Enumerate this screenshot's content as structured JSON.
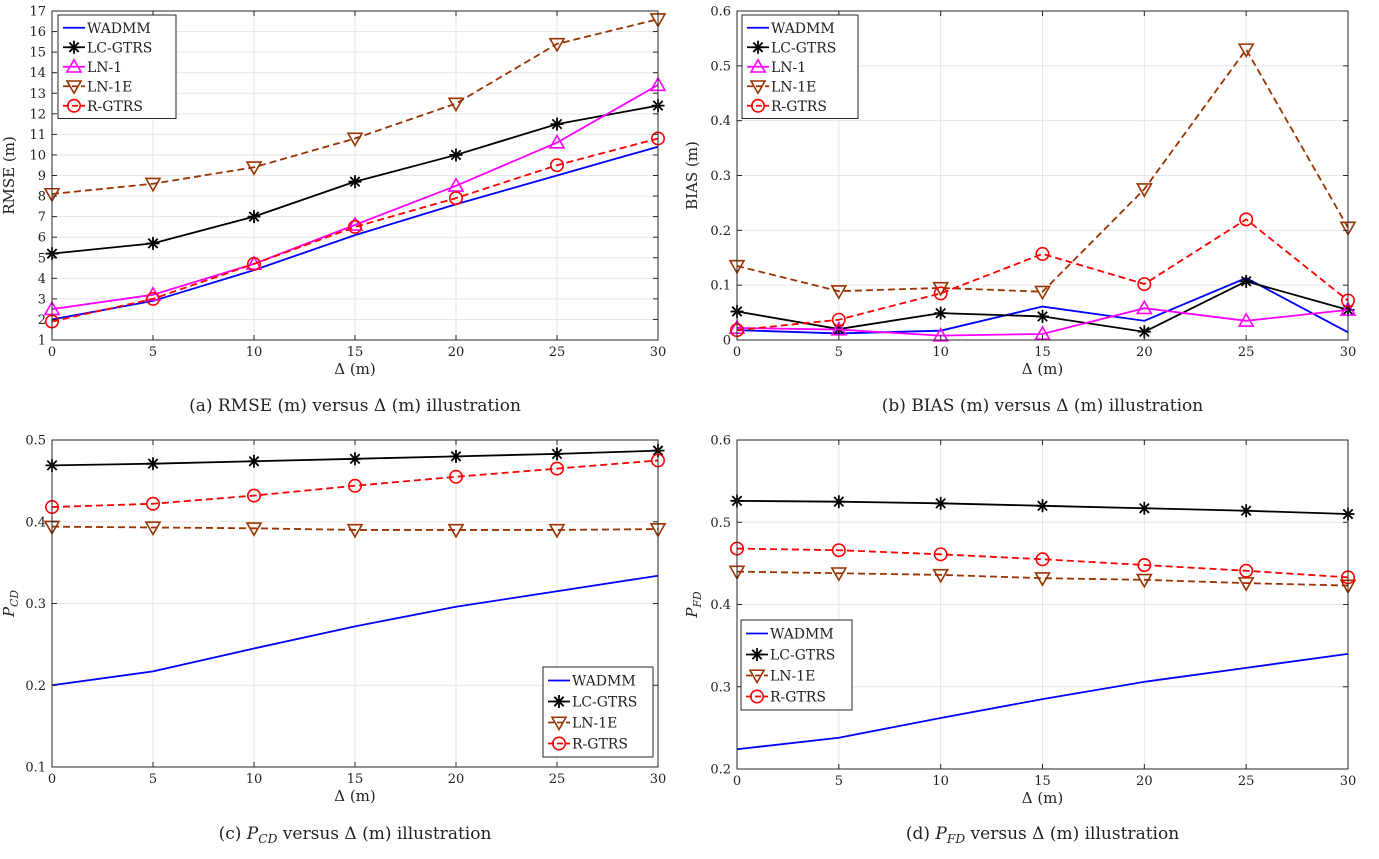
{
  "chart_data": [
    {
      "type": "line",
      "caption": "(a) RMSE (m) versus Δ (m) illustration",
      "xlabel": "Δ (m)",
      "ylabel": "RMSE (m)",
      "x": [
        0,
        5,
        10,
        15,
        20,
        25,
        30
      ],
      "xlim": [
        0,
        30
      ],
      "ylim": [
        1,
        17
      ],
      "xticks": [
        0,
        5,
        10,
        15,
        20,
        25,
        30
      ],
      "yticks": [
        1,
        2,
        3,
        4,
        5,
        6,
        7,
        8,
        9,
        10,
        11,
        12,
        13,
        14,
        15,
        16,
        17
      ],
      "grid": true,
      "legend_position": "top-left",
      "series": [
        {
          "name": "WADMM",
          "color": "#0000ff",
          "dash": "solid",
          "marker": "none",
          "values": [
            2.0,
            2.9,
            4.4,
            6.1,
            7.6,
            9.0,
            10.4
          ]
        },
        {
          "name": "LC-GTRS",
          "color": "#000000",
          "dash": "solid",
          "marker": "star",
          "values": [
            5.2,
            5.7,
            7.0,
            8.7,
            10.0,
            11.5,
            12.4
          ]
        },
        {
          "name": "LN-1",
          "color": "#ff00ff",
          "dash": "solid",
          "marker": "triangle-up",
          "values": [
            2.5,
            3.2,
            4.7,
            6.6,
            8.5,
            10.6,
            13.4
          ]
        },
        {
          "name": "LN-1E",
          "color": "#993300",
          "dash": "dashed",
          "marker": "triangle-down",
          "values": [
            8.1,
            8.6,
            9.4,
            10.8,
            12.5,
            15.4,
            16.6
          ]
        },
        {
          "name": "R-GTRS",
          "color": "#ff0000",
          "dash": "dashed",
          "marker": "circle",
          "values": [
            1.9,
            3.0,
            4.7,
            6.5,
            7.9,
            9.5,
            10.8
          ]
        }
      ]
    },
    {
      "type": "line",
      "caption": "(b) BIAS (m) versus Δ (m) illustration",
      "xlabel": "Δ (m)",
      "ylabel": "BIAS (m)",
      "x": [
        0,
        5,
        10,
        15,
        20,
        25,
        30
      ],
      "xlim": [
        0,
        30
      ],
      "ylim": [
        0,
        0.6
      ],
      "xticks": [
        0,
        5,
        10,
        15,
        20,
        25,
        30
      ],
      "yticks": [
        0,
        0.1,
        0.2,
        0.3,
        0.4,
        0.5,
        0.6
      ],
      "grid": true,
      "legend_position": "top-left",
      "series": [
        {
          "name": "WADMM",
          "color": "#0000ff",
          "dash": "solid",
          "marker": "none",
          "values": [
            0.018,
            0.012,
            0.017,
            0.061,
            0.035,
            0.113,
            0.014
          ]
        },
        {
          "name": "LC-GTRS",
          "color": "#000000",
          "dash": "solid",
          "marker": "star",
          "values": [
            0.052,
            0.02,
            0.049,
            0.043,
            0.015,
            0.107,
            0.055
          ]
        },
        {
          "name": "LN-1",
          "color": "#ff00ff",
          "dash": "solid",
          "marker": "triangle-up",
          "values": [
            0.022,
            0.019,
            0.008,
            0.011,
            0.058,
            0.035,
            0.055
          ]
        },
        {
          "name": "LN-1E",
          "color": "#993300",
          "dash": "dashed",
          "marker": "triangle-down",
          "values": [
            0.135,
            0.089,
            0.095,
            0.088,
            0.275,
            0.53,
            0.205
          ]
        },
        {
          "name": "R-GTRS",
          "color": "#ff0000",
          "dash": "dashed",
          "marker": "circle",
          "values": [
            0.018,
            0.037,
            0.085,
            0.157,
            0.102,
            0.22,
            0.072
          ]
        }
      ]
    },
    {
      "type": "line",
      "caption": "(c) P_CD versus Δ (m) illustration",
      "xlabel": "Δ (m)",
      "ylabel": "P_CD",
      "x": [
        0,
        5,
        10,
        15,
        20,
        25,
        30
      ],
      "xlim": [
        0,
        30
      ],
      "ylim": [
        0.1,
        0.5
      ],
      "xticks": [
        0,
        5,
        10,
        15,
        20,
        25,
        30
      ],
      "yticks": [
        0.1,
        0.2,
        0.3,
        0.4,
        0.5
      ],
      "grid": true,
      "legend_position": "bottom-right",
      "series": [
        {
          "name": "WADMM",
          "color": "#0000ff",
          "dash": "solid",
          "marker": "none",
          "values": [
            0.2,
            0.217,
            0.245,
            0.272,
            0.296,
            0.315,
            0.334
          ]
        },
        {
          "name": "LC-GTRS",
          "color": "#000000",
          "dash": "solid",
          "marker": "star",
          "values": [
            0.469,
            0.471,
            0.474,
            0.477,
            0.48,
            0.483,
            0.487
          ]
        },
        {
          "name": "LN-1E",
          "color": "#993300",
          "dash": "dashed",
          "marker": "triangle-down",
          "values": [
            0.394,
            0.393,
            0.392,
            0.39,
            0.39,
            0.39,
            0.391
          ]
        },
        {
          "name": "R-GTRS",
          "color": "#ff0000",
          "dash": "dashed",
          "marker": "circle",
          "values": [
            0.418,
            0.422,
            0.432,
            0.444,
            0.455,
            0.465,
            0.475
          ]
        }
      ]
    },
    {
      "type": "line",
      "caption": "(d) P_FD versus Δ (m) illustration",
      "xlabel": "Δ (m)",
      "ylabel": "P_FD",
      "x": [
        0,
        5,
        10,
        15,
        20,
        25,
        30
      ],
      "xlim": [
        0,
        30
      ],
      "ylim": [
        0.2,
        0.6
      ],
      "xticks": [
        0,
        5,
        10,
        15,
        20,
        25,
        30
      ],
      "yticks": [
        0.2,
        0.3,
        0.4,
        0.5,
        0.6
      ],
      "grid": true,
      "legend_position": "bottom-left",
      "series": [
        {
          "name": "WADMM",
          "color": "#0000ff",
          "dash": "solid",
          "marker": "none",
          "values": [
            0.224,
            0.238,
            0.262,
            0.285,
            0.306,
            0.323,
            0.34
          ]
        },
        {
          "name": "LC-GTRS",
          "color": "#000000",
          "dash": "solid",
          "marker": "star",
          "values": [
            0.526,
            0.525,
            0.523,
            0.52,
            0.517,
            0.514,
            0.51
          ]
        },
        {
          "name": "LN-1E",
          "color": "#993300",
          "dash": "dashed",
          "marker": "triangle-down",
          "values": [
            0.44,
            0.438,
            0.436,
            0.432,
            0.43,
            0.426,
            0.423
          ]
        },
        {
          "name": "R-GTRS",
          "color": "#ff0000",
          "dash": "dashed",
          "marker": "circle",
          "values": [
            0.468,
            0.466,
            0.461,
            0.455,
            0.448,
            0.441,
            0.433
          ]
        }
      ]
    }
  ]
}
